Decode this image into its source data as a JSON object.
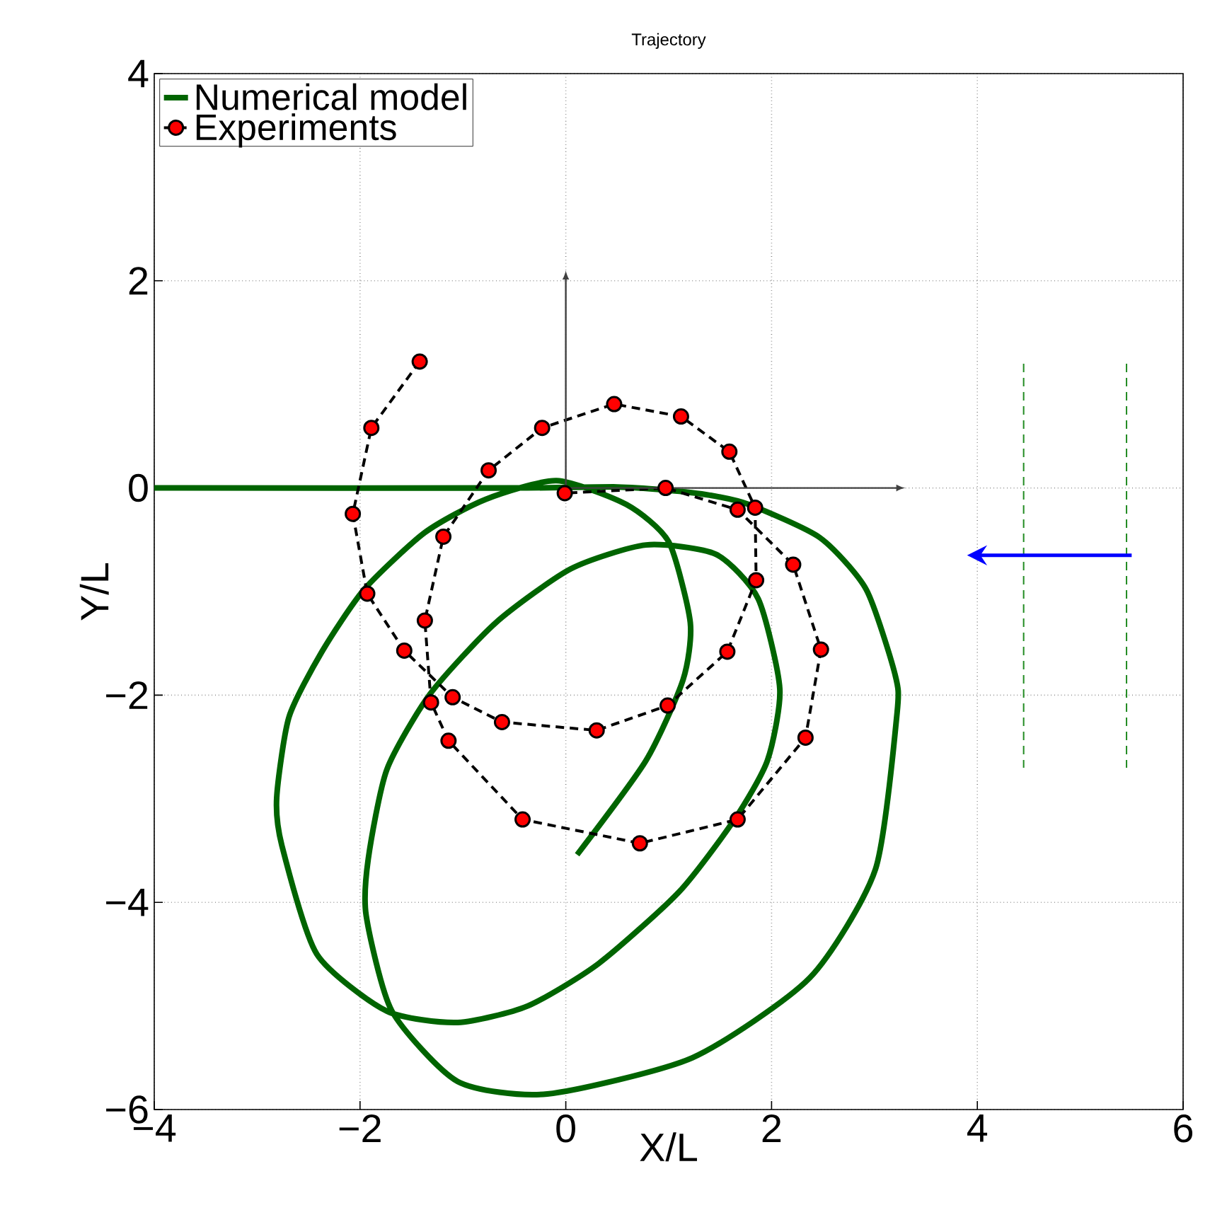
{
  "chart_data": {
    "type": "line",
    "title": "Trajectory",
    "xlabel": "X/L",
    "ylabel": "Y/L",
    "xlim": [
      -4,
      6
    ],
    "ylim": [
      -6,
      4
    ],
    "xticks": [
      {
        "value": -4,
        "label": "−4"
      },
      {
        "value": -2,
        "label": "−2"
      },
      0,
      2,
      4,
      6
    ],
    "yticks": [
      {
        "value": -6,
        "label": "−6"
      },
      {
        "value": -4,
        "label": "−4"
      },
      {
        "value": -2,
        "label": "−2"
      },
      0,
      2,
      4
    ],
    "grid": true,
    "legend": "top left",
    "series": [
      {
        "name": "Numerical model",
        "color": "#006400",
        "line_style": "solid",
        "marker": "none",
        "x": [
          -4,
          -0.5,
          0.5,
          0.97,
          1.4,
          1.78,
          2.47,
          2.92,
          3.2,
          3.22,
          3.01,
          2.37,
          1.23,
          -0.18,
          -1.05,
          -1.69,
          -1.94,
          -1.92,
          -1.74,
          -1.32,
          -0.68,
          0.05,
          0.78,
          1.46,
          1.87,
          2.08,
          1.96,
          1.64,
          1.1,
          0.32,
          -0.37,
          -1.05,
          -1.74,
          -2.42,
          -2.76,
          -2.81,
          -2.69,
          -2.37,
          -1.96,
          -1.37,
          -0.78,
          -0.09,
          0.59,
          1.0,
          1.21,
          1.14,
          0.78,
          0.11
        ],
        "values": [
          0,
          0,
          0.01,
          -0.02,
          -0.07,
          -0.16,
          -0.48,
          -0.98,
          -1.8,
          -2.17,
          -3.68,
          -4.73,
          -5.5,
          -5.85,
          -5.73,
          -5.05,
          -4.13,
          -3.58,
          -2.72,
          -1.99,
          -1.3,
          -0.78,
          -0.55,
          -0.64,
          -1.07,
          -1.94,
          -2.63,
          -3.2,
          -3.9,
          -4.59,
          -5.0,
          -5.16,
          -5.05,
          -4.5,
          -3.45,
          -2.99,
          -2.21,
          -1.58,
          -0.98,
          -0.43,
          -0.11,
          0.07,
          -0.16,
          -0.52,
          -1.3,
          -1.85,
          -2.63,
          -3.54
        ]
      },
      {
        "name": "Experiments",
        "color": "#000000",
        "line_style": "dashed",
        "marker": "circle",
        "x": [
          -1.42,
          -1.89,
          -2.07,
          -1.93,
          -1.57,
          -1.1,
          -0.62,
          0.3,
          0.99,
          1.57,
          1.85,
          1.84,
          1.59,
          1.12,
          0.47,
          -0.23,
          -0.75,
          -1.19,
          -1.37,
          -1.31,
          -1.14,
          -0.42,
          0.72,
          1.67,
          2.33,
          2.48,
          2.21,
          1.67,
          0.97,
          -0.01
        ],
        "values": [
          1.22,
          0.58,
          -0.25,
          -1.02,
          -1.57,
          -2.02,
          -2.26,
          -2.34,
          -2.1,
          -1.58,
          -0.89,
          -0.19,
          0.35,
          0.69,
          0.81,
          0.58,
          0.17,
          -0.47,
          -1.28,
          -2.07,
          -2.44,
          -3.2,
          -3.43,
          -3.2,
          -2.41,
          -1.56,
          -0.74,
          -0.21,
          0.0,
          -0.05
        ]
      },
      {
        "color": "#228b22",
        "line_style": "dashed",
        "marker": "none",
        "x": [
          4.45,
          4.45
        ],
        "values": [
          1.2,
          -2.7
        ]
      },
      {
        "color": "#228b22",
        "line_style": "dashed",
        "marker": "none",
        "x": [
          5.45,
          5.45
        ],
        "values": [
          1.2,
          -2.7
        ]
      }
    ]
  }
}
